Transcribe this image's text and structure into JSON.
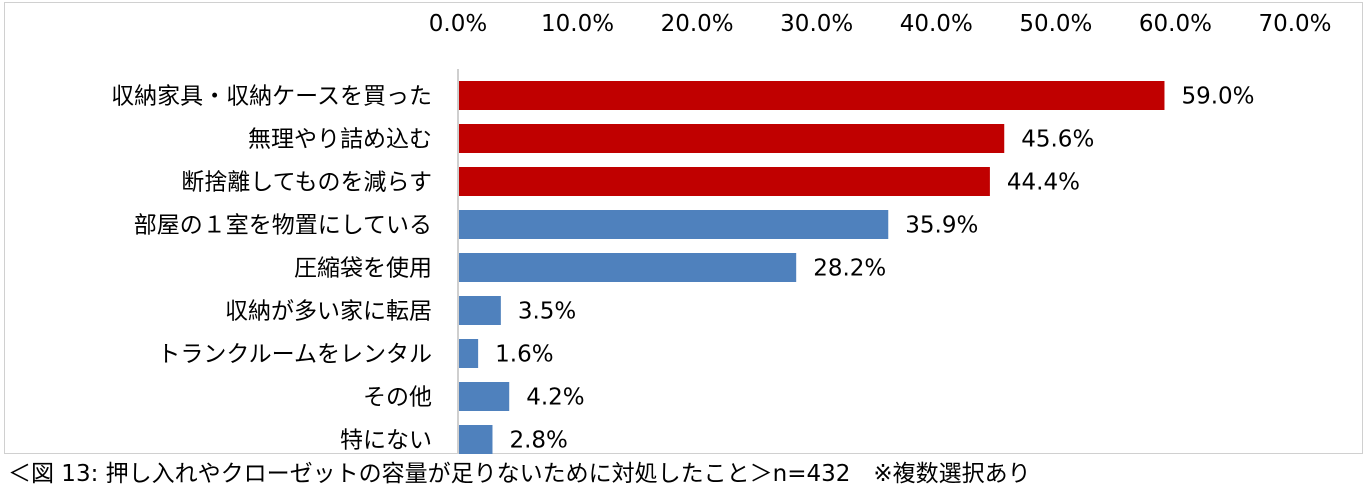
{
  "chart_data": {
    "type": "bar",
    "orientation": "horizontal",
    "title": "",
    "xlabel": "",
    "ylabel": "",
    "xlim": [
      0,
      70
    ],
    "x_ticks": [
      "0.0%",
      "10.0%",
      "20.0%",
      "30.0%",
      "40.0%",
      "50.0%",
      "60.0%",
      "70.0%"
    ],
    "x_axis_position": "top",
    "grid": false,
    "categories": [
      "収納家具・収納ケースを買った",
      "無理やり詰め込む",
      "断捨離してものを減らす",
      "部屋の１室を物置にしている",
      "圧縮袋を使用",
      "収納が多い家に転居",
      "トランクルームをレンタル",
      "その他",
      "特にない"
    ],
    "values": [
      59.0,
      45.6,
      44.4,
      35.9,
      28.2,
      3.5,
      1.6,
      4.2,
      2.8
    ],
    "data_labels": [
      "59.0%",
      "45.6%",
      "44.4%",
      "35.9%",
      "28.2%",
      "3.5%",
      "1.6%",
      "4.2%",
      "2.8%"
    ],
    "colors": [
      "#c00000",
      "#c00000",
      "#c00000",
      "#4f81bd",
      "#4f81bd",
      "#4f81bd",
      "#4f81bd",
      "#4f81bd",
      "#4f81bd"
    ]
  },
  "caption": "＜図 13:  押し入れやクローゼットの容量が足りないために対処したこと＞n=432　※複数選択あり"
}
